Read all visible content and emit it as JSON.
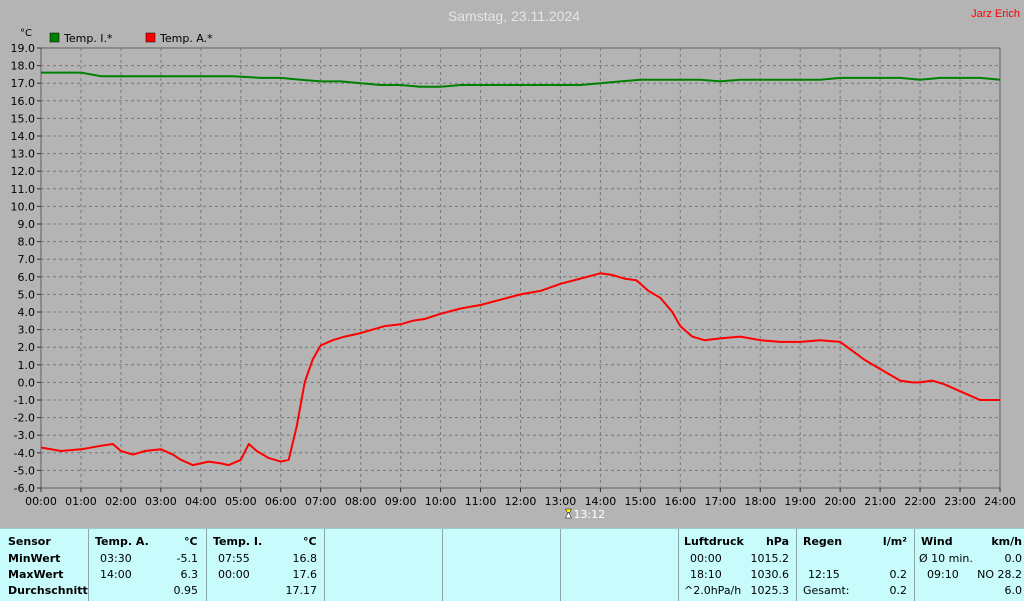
{
  "app": {
    "author": "Jarz Erich"
  },
  "chart_data": {
    "type": "line",
    "title": "Samstag, 23.11.2024",
    "unit": "°C",
    "ylim": [
      -6,
      19
    ],
    "y_ticks": [
      "-6.0",
      "-5.0",
      "-4.0",
      "-3.0",
      "-2.0",
      "-1.0",
      "0.0",
      "1.0",
      "2.0",
      "3.0",
      "4.0",
      "5.0",
      "6.0",
      "7.0",
      "8.0",
      "9.0",
      "10.0",
      "11.0",
      "12.0",
      "13.0",
      "14.0",
      "15.0",
      "16.0",
      "17.0",
      "18.0",
      "19.0"
    ],
    "x_ticks": [
      "00:00",
      "01:00",
      "02:00",
      "03:00",
      "04:00",
      "05:00",
      "06:00",
      "07:00",
      "08:00",
      "09:00",
      "10:00",
      "11:00",
      "12:00",
      "13:00",
      "14:00",
      "15:00",
      "16:00",
      "17:00",
      "18:00",
      "19:00",
      "20:00",
      "21:00",
      "22:00",
      "23:00",
      "24:00"
    ],
    "grid": true,
    "marker_label": "13:12",
    "marker_hour": 13.2,
    "series": [
      {
        "name": "Temp. I.*",
        "color": "#008000",
        "x": [
          0,
          0.4,
          1,
          1.5,
          2,
          3,
          4,
          4.8,
          5.5,
          6,
          6.5,
          7,
          7.5,
          8,
          8.5,
          9,
          9.5,
          10,
          10.5,
          11,
          11.5,
          12,
          12.5,
          13,
          13.5,
          14,
          14.5,
          15,
          15.5,
          16,
          16.5,
          17,
          17.5,
          18,
          18.5,
          19,
          19.5,
          20,
          20.5,
          21,
          21.5,
          22,
          22.5,
          23,
          23.5,
          24
        ],
        "y": [
          17.6,
          17.6,
          17.6,
          17.4,
          17.4,
          17.4,
          17.4,
          17.4,
          17.3,
          17.3,
          17.2,
          17.1,
          17.1,
          17.0,
          16.9,
          16.9,
          16.8,
          16.8,
          16.9,
          16.9,
          16.9,
          16.9,
          16.9,
          16.9,
          16.9,
          17.0,
          17.1,
          17.2,
          17.2,
          17.2,
          17.2,
          17.1,
          17.2,
          17.2,
          17.2,
          17.2,
          17.2,
          17.3,
          17.3,
          17.3,
          17.3,
          17.2,
          17.3,
          17.3,
          17.3,
          17.2
        ]
      },
      {
        "name": "Temp. A.*",
        "color": "#ff0000",
        "x": [
          0,
          0.5,
          1,
          1.5,
          1.8,
          2,
          2.3,
          2.6,
          3,
          3.3,
          3.5,
          3.8,
          4,
          4.2,
          4.5,
          4.7,
          4.9,
          5,
          5.2,
          5.4,
          5.7,
          6,
          6.2,
          6.4,
          6.6,
          6.8,
          7,
          7.3,
          7.6,
          8,
          8.3,
          8.6,
          9,
          9.3,
          9.6,
          10,
          10.5,
          11,
          11.5,
          12,
          12.5,
          13,
          13.5,
          14,
          14.3,
          14.6,
          14.9,
          15.2,
          15.5,
          15.8,
          16,
          16.3,
          16.6,
          17,
          17.5,
          18,
          18.5,
          19,
          19.5,
          20,
          20.3,
          20.6,
          20.9,
          21.2,
          21.5,
          21.8,
          22,
          22.3,
          22.6,
          22.9,
          23.2,
          23.5,
          24
        ],
        "y": [
          -3.7,
          -3.9,
          -3.8,
          -3.6,
          -3.5,
          -3.9,
          -4.1,
          -3.9,
          -3.8,
          -4.1,
          -4.4,
          -4.7,
          -4.6,
          -4.5,
          -4.6,
          -4.7,
          -4.5,
          -4.4,
          -3.5,
          -3.9,
          -4.3,
          -4.5,
          -4.4,
          -2.5,
          0,
          1.3,
          2.1,
          2.4,
          2.6,
          2.8,
          3.0,
          3.2,
          3.3,
          3.5,
          3.6,
          3.9,
          4.2,
          4.4,
          4.7,
          5.0,
          5.2,
          5.6,
          5.9,
          6.2,
          6.1,
          5.9,
          5.8,
          5.2,
          4.8,
          4.0,
          3.2,
          2.6,
          2.4,
          2.5,
          2.6,
          2.4,
          2.3,
          2.3,
          2.4,
          2.3,
          1.8,
          1.3,
          0.9,
          0.5,
          0.1,
          0.0,
          0.0,
          0.1,
          -0.1,
          -0.4,
          -0.7,
          -1.0,
          -1.0
        ]
      }
    ]
  },
  "stats": {
    "sensor_label": "Sensor",
    "min_label": "MinWert",
    "max_label": "MaxWert",
    "avg_label": "Durchschnitt",
    "temp_a": {
      "header": "Temp. A.",
      "unit": "°C",
      "min_time": "03:30",
      "min_val": "-5.1",
      "max_time": "14:00",
      "max_val": "6.3",
      "avg": "0.95"
    },
    "temp_i": {
      "header": "Temp. I.",
      "unit": "°C",
      "min_time": "07:55",
      "min_val": "16.8",
      "max_time": "00:00",
      "max_val": "17.6",
      "avg": "17.17"
    },
    "pressure": {
      "header": "Luftdruck",
      "unit": "hPa",
      "min_time": "00:00",
      "min_val": "1015.2",
      "max_time": "18:10",
      "max_val": "1030.6",
      "trend_label": "^2.0hPa/h",
      "trend_val": "1025.3"
    },
    "rain": {
      "header": "Regen",
      "unit": "l/m²",
      "row2_time": "12:15",
      "row2_val": "0.2",
      "total_label": "Gesamt:",
      "total_val": "0.2"
    },
    "wind": {
      "header": "Wind",
      "unit": "km/h",
      "avg_label": "Ø 10 min.",
      "avg_val": "0.0",
      "max_time": "09:10",
      "max_val": "NO 28.2",
      "row3_val": "6.0"
    }
  }
}
